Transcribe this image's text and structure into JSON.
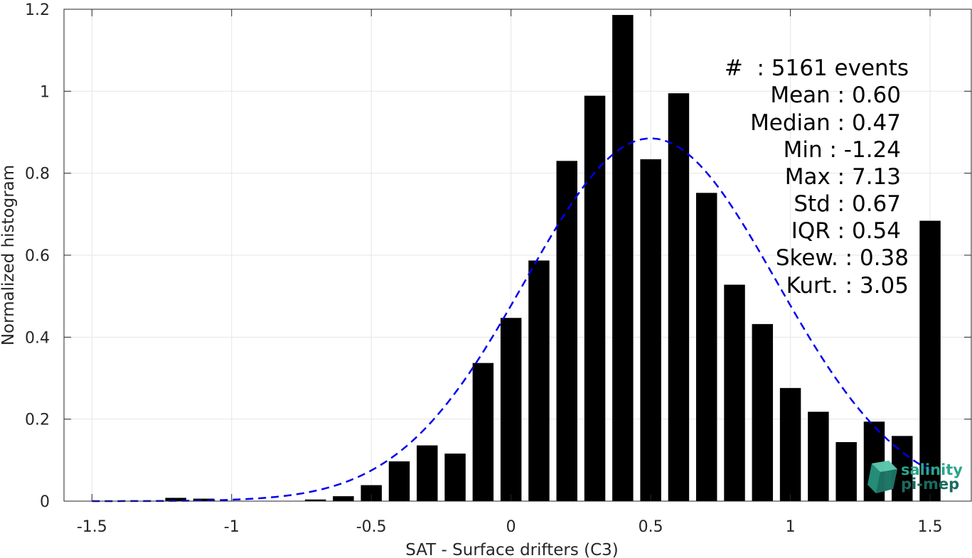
{
  "chart_data": {
    "type": "bar",
    "xlabel": "SAT - Surface drifters (C3)",
    "ylabel": "Normalized histogram",
    "xlim": [
      -1.5,
      1.5
    ],
    "ylim": [
      0,
      1.2
    ],
    "grid": true,
    "x_ticks": [
      "-1.5",
      "-1",
      "-0.5",
      "0",
      "0.5",
      "1",
      "1.5"
    ],
    "y_ticks": [
      "0",
      "0.2",
      "0.4",
      "0.6",
      "0.8",
      "1",
      "1.2"
    ],
    "bar_color": "#000000",
    "bars": [
      {
        "x": -1.2,
        "y": 0.008
      },
      {
        "x": -1.1,
        "y": 0.006
      },
      {
        "x": -0.7,
        "y": 0.004
      },
      {
        "x": -0.6,
        "y": 0.012
      },
      {
        "x": -0.5,
        "y": 0.039
      },
      {
        "x": -0.4,
        "y": 0.097
      },
      {
        "x": -0.3,
        "y": 0.136
      },
      {
        "x": -0.2,
        "y": 0.116
      },
      {
        "x": -0.1,
        "y": 0.337
      },
      {
        "x": 0.0,
        "y": 0.447
      },
      {
        "x": 0.1,
        "y": 0.587
      },
      {
        "x": 0.2,
        "y": 0.83
      },
      {
        "x": 0.3,
        "y": 0.989
      },
      {
        "x": 0.4,
        "y": 1.186
      },
      {
        "x": 0.5,
        "y": 0.834
      },
      {
        "x": 0.6,
        "y": 0.995
      },
      {
        "x": 0.7,
        "y": 0.752
      },
      {
        "x": 0.8,
        "y": 0.528
      },
      {
        "x": 0.9,
        "y": 0.432
      },
      {
        "x": 1.0,
        "y": 0.276
      },
      {
        "x": 1.1,
        "y": 0.218
      },
      {
        "x": 1.2,
        "y": 0.144
      },
      {
        "x": 1.3,
        "y": 0.194
      },
      {
        "x": 1.4,
        "y": 0.159
      },
      {
        "x": 1.5,
        "y": 0.684
      }
    ],
    "fit_curve": {
      "style": "dashed",
      "color": "#0000ee",
      "mean": 0.5,
      "std": 0.45,
      "peak": 0.885,
      "x_range": [
        -1.5,
        1.5
      ]
    }
  },
  "stats": [
    "#  : 5161 events",
    "Mean : 0.60",
    "Median : 0.47",
    "Min : -1.24",
    "Max : 7.13",
    "Std : 0.67",
    "IQR : 0.54",
    "Skew. : 0.38",
    "Kurt. : 3.05"
  ],
  "logo": {
    "line1": "salinity",
    "line2": "pi-mep",
    "color": "#2aa58c",
    "dark_color": "#1a6b5e"
  }
}
